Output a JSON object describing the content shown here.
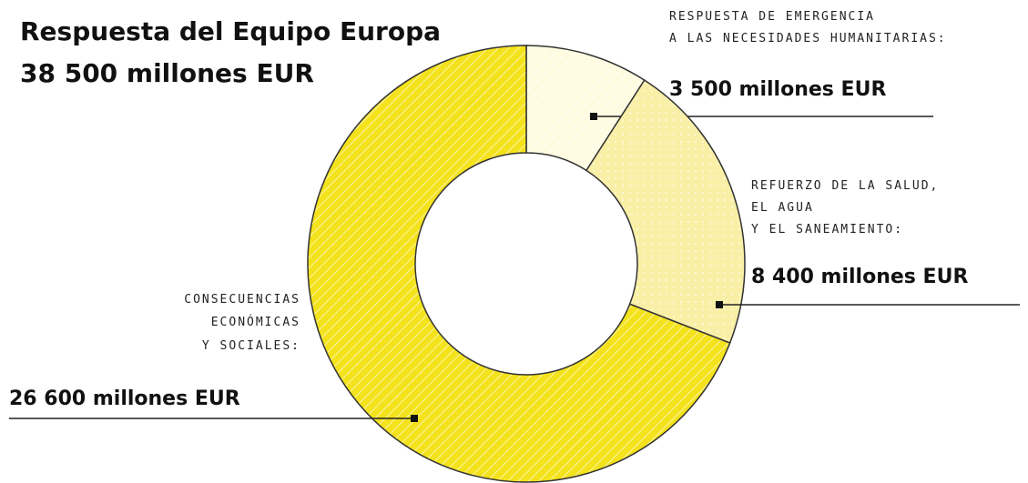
{
  "chart_data": {
    "type": "donut",
    "title": "Respuesta del Equipo Europa",
    "subtitle": "38 500 millones EUR",
    "categories": [
      "RESPUESTA DE EMERGENCIA\nA LAS NECESIDADES HUMANITARIAS:",
      "REFUERZO DE LA SALUD,\nEL AGUA\nY EL SANEAMIENTO:",
      "CONSECUENCIAS\nECONÓMICAS\nY SOCIALES:"
    ],
    "values": [
      3500,
      8400,
      26600
    ],
    "value_labels": [
      "3 500 millones EUR",
      "8 400 millones EUR",
      "26 600 millones EUR"
    ],
    "colors": [
      "#fffbe0",
      "#f9efa6",
      "#f4e21c"
    ]
  }
}
